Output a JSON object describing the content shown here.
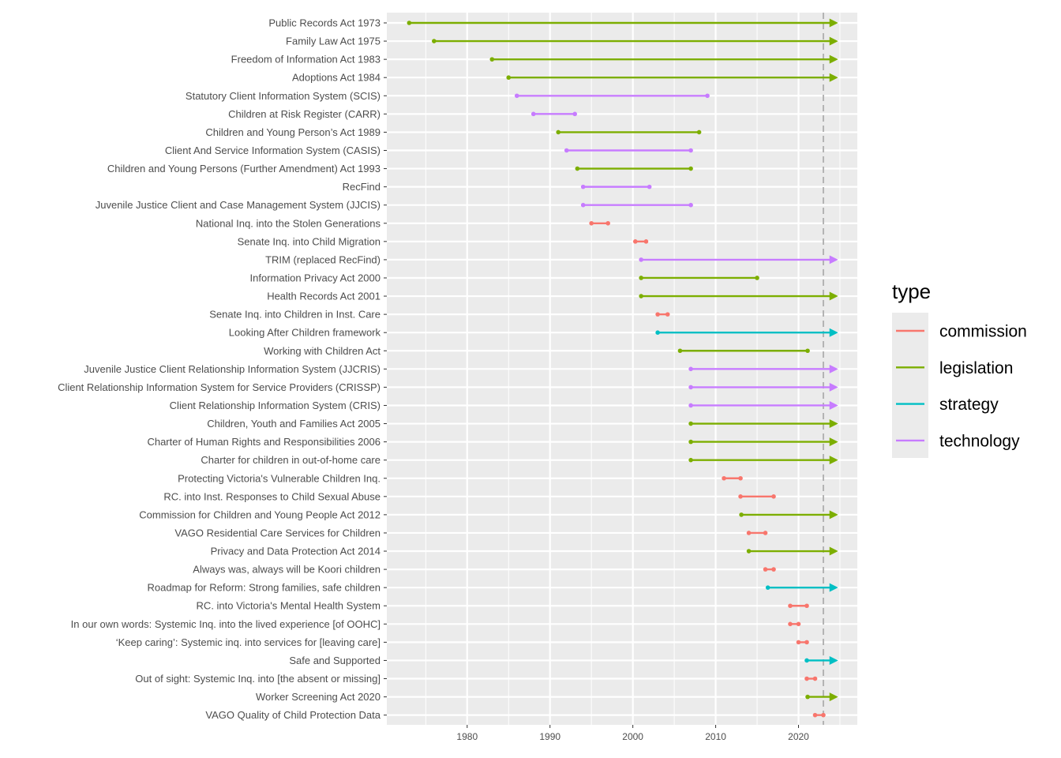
{
  "chart_data": {
    "type": "timeline",
    "title": "",
    "xlabel": "",
    "ylabel": "",
    "xlim": [
      1970.3,
      2027.1
    ],
    "x_ticks": [
      1980,
      1990,
      2000,
      2010,
      2020
    ],
    "x_tick_labels": [
      "1980",
      "1990",
      "2000",
      "2010",
      "2020"
    ],
    "reference_line": 2023,
    "grid": true,
    "ongoing_marker": "arrow",
    "legend": {
      "title": "type",
      "position": "right",
      "items": [
        {
          "key": "commission",
          "label": "commission",
          "color": "#F8766D"
        },
        {
          "key": "legislation",
          "label": "legislation",
          "color": "#7CAE00"
        },
        {
          "key": "strategy",
          "label": "strategy",
          "color": "#00BFC4"
        },
        {
          "key": "technology",
          "label": "technology",
          "color": "#C77CFF"
        }
      ]
    },
    "rows": [
      {
        "label": "Public Records Act 1973",
        "type": "legislation",
        "start": 1973,
        "end": 2024.5,
        "ongoing": true
      },
      {
        "label": "Family Law Act 1975",
        "type": "legislation",
        "start": 1976,
        "end": 2024.5,
        "ongoing": true
      },
      {
        "label": "Freedom of Information Act 1983",
        "type": "legislation",
        "start": 1983,
        "end": 2024.5,
        "ongoing": true
      },
      {
        "label": "Adoptions Act 1984",
        "type": "legislation",
        "start": 1985,
        "end": 2024.5,
        "ongoing": true
      },
      {
        "label": "Statutory Client Information System (SCIS)",
        "type": "technology",
        "start": 1986,
        "end": 2009,
        "ongoing": false
      },
      {
        "label": "Children at Risk Register (CARR)",
        "type": "technology",
        "start": 1988,
        "end": 1993,
        "ongoing": false
      },
      {
        "label": "Children and Young Person’s Act 1989",
        "type": "legislation",
        "start": 1991,
        "end": 2008,
        "ongoing": false
      },
      {
        "label": "Client And Service Information System (CASIS)",
        "type": "technology",
        "start": 1992,
        "end": 2007,
        "ongoing": false
      },
      {
        "label": "Children and Young Persons (Further Amendment) Act 1993",
        "type": "legislation",
        "start": 1993.3,
        "end": 2007,
        "ongoing": false
      },
      {
        "label": "RecFind",
        "type": "technology",
        "start": 1994,
        "end": 2002,
        "ongoing": false
      },
      {
        "label": "Juvenile Justice Client and Case Management System (JJCIS)",
        "type": "technology",
        "start": 1994,
        "end": 2007,
        "ongoing": false
      },
      {
        "label": "National Inq. into the Stolen Generations",
        "type": "commission",
        "start": 1995,
        "end": 1997,
        "ongoing": false
      },
      {
        "label": "Senate Inq. into Child Migration",
        "type": "commission",
        "start": 2000.3,
        "end": 2001.6,
        "ongoing": false
      },
      {
        "label": "TRIM (replaced RecFind)",
        "type": "technology",
        "start": 2001,
        "end": 2024.5,
        "ongoing": true
      },
      {
        "label": "Information Privacy Act 2000",
        "type": "legislation",
        "start": 2001,
        "end": 2015,
        "ongoing": false
      },
      {
        "label": "Health Records Act 2001",
        "type": "legislation",
        "start": 2001,
        "end": 2024.5,
        "ongoing": true
      },
      {
        "label": "Senate Inq. into Children in Inst. Care",
        "type": "commission",
        "start": 2003,
        "end": 2004.2,
        "ongoing": false
      },
      {
        "label": "Looking After Children framework",
        "type": "strategy",
        "start": 2003,
        "end": 2024.5,
        "ongoing": true
      },
      {
        "label": "Working with Children Act",
        "type": "legislation",
        "start": 2005.7,
        "end": 2021.1,
        "ongoing": false
      },
      {
        "label": "Juvenile Justice Client Relationship Information System (JJCRIS)",
        "type": "technology",
        "start": 2007,
        "end": 2024.5,
        "ongoing": true
      },
      {
        "label": "Client Relationship Information System for Service Providers (CRISSP)",
        "type": "technology",
        "start": 2007,
        "end": 2024.5,
        "ongoing": true
      },
      {
        "label": "Client Relationship Information System (CRIS)",
        "type": "technology",
        "start": 2007,
        "end": 2024.5,
        "ongoing": true
      },
      {
        "label": "Children, Youth and Families Act 2005",
        "type": "legislation",
        "start": 2007,
        "end": 2024.5,
        "ongoing": true
      },
      {
        "label": "Charter of Human Rights and Responsibilities 2006",
        "type": "legislation",
        "start": 2007,
        "end": 2024.5,
        "ongoing": true
      },
      {
        "label": "Charter for children in out-of-home care",
        "type": "legislation",
        "start": 2007,
        "end": 2024.5,
        "ongoing": true
      },
      {
        "label": "Protecting Victoria's Vulnerable Children Inq.",
        "type": "commission",
        "start": 2011,
        "end": 2013,
        "ongoing": false
      },
      {
        "label": "RC. into Inst. Responses to Child Sexual Abuse",
        "type": "commission",
        "start": 2013,
        "end": 2017,
        "ongoing": false
      },
      {
        "label": "Commission for Children and Young People Act 2012",
        "type": "legislation",
        "start": 2013.1,
        "end": 2024.5,
        "ongoing": true
      },
      {
        "label": "VAGO Residential Care Services for Children",
        "type": "commission",
        "start": 2014,
        "end": 2016,
        "ongoing": false
      },
      {
        "label": "Privacy and Data Protection Act 2014",
        "type": "legislation",
        "start": 2014,
        "end": 2024.5,
        "ongoing": true
      },
      {
        "label": "Always was, always will be Koori children",
        "type": "commission",
        "start": 2016,
        "end": 2017,
        "ongoing": false
      },
      {
        "label": "Roadmap for Reform: Strong families, safe children",
        "type": "strategy",
        "start": 2016.3,
        "end": 2024.5,
        "ongoing": true
      },
      {
        "label": "RC. into Victoria's Mental Health System",
        "type": "commission",
        "start": 2019,
        "end": 2021,
        "ongoing": false
      },
      {
        "label": "In our own words: Systemic Inq. into the lived experience [of OOHC]",
        "type": "commission",
        "start": 2019,
        "end": 2020,
        "ongoing": false
      },
      {
        "label": "‘Keep caring’: Systemic inq. into services for [leaving care]",
        "type": "commission",
        "start": 2020,
        "end": 2021,
        "ongoing": false
      },
      {
        "label": "Safe and Supported",
        "type": "strategy",
        "start": 2021,
        "end": 2024.5,
        "ongoing": true
      },
      {
        "label": "Out of sight: Systemic Inq. into [the absent or missing]",
        "type": "commission",
        "start": 2021,
        "end": 2022,
        "ongoing": false
      },
      {
        "label": "Worker Screening Act 2020",
        "type": "legislation",
        "start": 2021.1,
        "end": 2024.5,
        "ongoing": true
      },
      {
        "label": "VAGO Quality of Child Protection Data",
        "type": "commission",
        "start": 2022,
        "end": 2023,
        "ongoing": false
      }
    ]
  }
}
